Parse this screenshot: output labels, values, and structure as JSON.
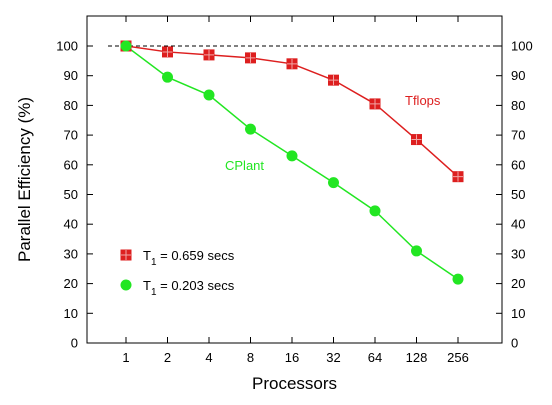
{
  "chart_data": {
    "type": "line",
    "categories": [
      "1",
      "2",
      "4",
      "8",
      "16",
      "32",
      "64",
      "128",
      "256"
    ],
    "xlabel": "Processors",
    "ylabel": "Parallel Efficiency (%)",
    "ylim": [
      0,
      100
    ],
    "yticks": [
      0,
      10,
      20,
      30,
      40,
      50,
      60,
      70,
      80,
      90,
      100
    ],
    "grid": false,
    "reference_line": {
      "y": 100,
      "style": "dashed",
      "color": "#000000"
    },
    "series": [
      {
        "name": "Tflops",
        "color": "#dd1f1f",
        "marker": "square",
        "values": [
          100,
          98,
          97,
          96,
          94,
          88.5,
          80.5,
          68.5,
          56
        ]
      },
      {
        "name": "CPlant",
        "color": "#22e622",
        "marker": "circle",
        "values": [
          100,
          89.5,
          83.5,
          72,
          63,
          54,
          44.5,
          31,
          21.5
        ]
      }
    ],
    "legend": {
      "placement": "lower-left",
      "entries": [
        {
          "prefix": "T",
          "subscript": "1",
          "text": " = 0.659 secs",
          "marker": "square",
          "color": "#dd1f1f"
        },
        {
          "prefix": "T",
          "subscript": "1",
          "text": " = 0.203 secs",
          "marker": "circle",
          "color": "#22e622"
        }
      ]
    }
  }
}
